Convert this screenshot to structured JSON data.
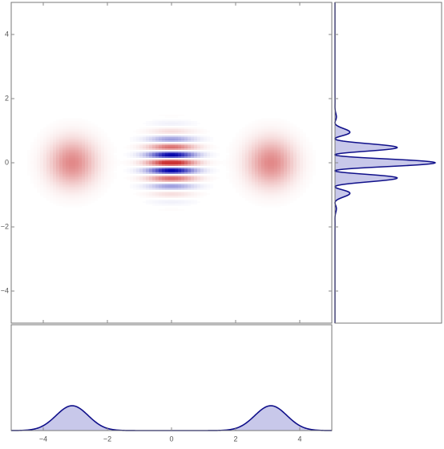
{
  "chart_data": {
    "type": "density",
    "xlim": [
      -5,
      5
    ],
    "ylim": [
      -5,
      5
    ],
    "xticks": [
      {
        "value": -4,
        "label": "−4"
      },
      {
        "value": -2,
        "label": "−2"
      },
      0,
      2,
      4
    ],
    "yticks": [
      {
        "value": -4,
        "label": "−4"
      },
      {
        "value": -2,
        "label": "−2"
      },
      0,
      2,
      4
    ],
    "model": {
      "centers": [
        -3.1,
        3.1
      ],
      "sigma": 0.5,
      "fringe_period": 0.5
    },
    "positive_color": "#cc3333",
    "negative_color": "#0000aa",
    "marginal_line_color": "#10108a",
    "marginal_fill_color": "#c8c8ea",
    "marginal_x_ylim": [
      0,
      1.7
    ],
    "marginal_y_xlim": [
      0,
      1.7
    ]
  }
}
